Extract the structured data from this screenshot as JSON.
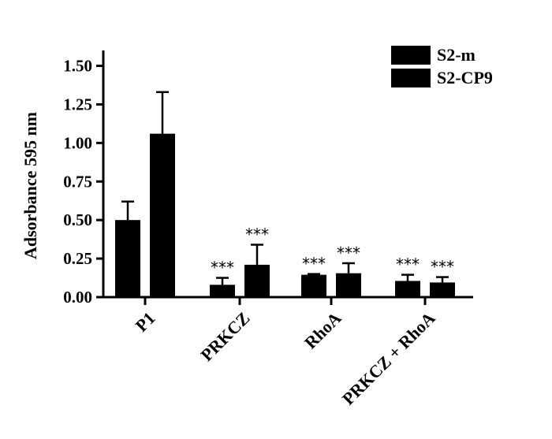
{
  "chart_data": {
    "type": "bar",
    "ylabel": "Adsorbance 595 nm",
    "ylim": [
      0,
      1.6
    ],
    "yticks": [
      "0.00",
      "0.25",
      "0.50",
      "0.75",
      "1.00",
      "1.25",
      "1.50"
    ],
    "categories": [
      "P1",
      "PRKCZ",
      "RhoA",
      "PRKCZ + RhoA"
    ],
    "series": [
      {
        "name": "S2-m",
        "color": "#000000",
        "values": [
          0.5,
          0.08,
          0.145,
          0.105
        ],
        "errors": [
          0.12,
          0.045,
          0.005,
          0.04
        ],
        "annotations": [
          "",
          "***",
          "***",
          "***"
        ]
      },
      {
        "name": "S2-CP9",
        "color": "#000000",
        "values": [
          1.06,
          0.21,
          0.155,
          0.095
        ],
        "errors": [
          0.27,
          0.13,
          0.065,
          0.035
        ],
        "annotations": [
          "",
          "***",
          "***",
          "***"
        ]
      }
    ],
    "legend_position": "top-right"
  }
}
